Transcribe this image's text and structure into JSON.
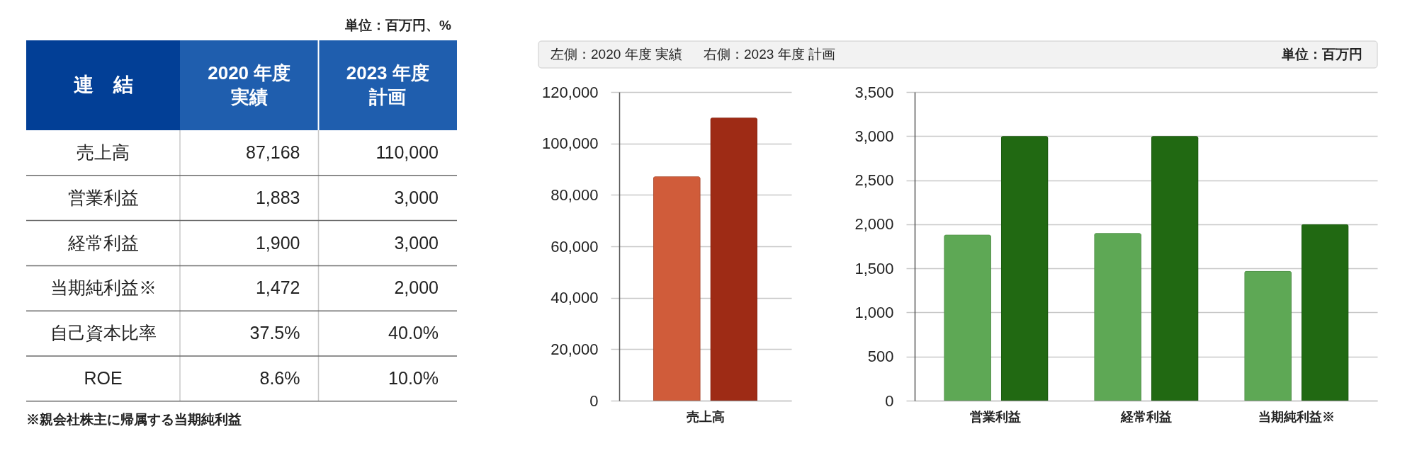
{
  "chart_data": [
    {
      "type": "other",
      "ylabel": "連　結",
      "categories": [
        "2020 年度実績",
        "2023 年度計画"
      ],
      "y_categories": [
        "売上高",
        "営業利益",
        "経常利益",
        "当期純利益※",
        "自己資本比率",
        "ROE"
      ],
      "cell_labels": [
        [
          "87,168",
          "110,000"
        ],
        [
          "1,883",
          "3,000"
        ],
        [
          "1,900",
          "3,000"
        ],
        [
          "1,472",
          "2,000"
        ],
        [
          "37.5%",
          "40.0%"
        ],
        [
          "8.6%",
          "10.0%"
        ]
      ],
      "annotations": [
        "単位：百万円、%",
        "※親会社株主に帰属する当期純利益"
      ]
    },
    {
      "type": "other",
      "annotations": [
        "左側：2020 年度 実績",
        "右側：2023 年度 計画",
        "単位：百万円"
      ]
    },
    {
      "type": "bar",
      "categories": [
        "売上高"
      ],
      "series": [
        {
          "color": "#d05c3a",
          "values": [
            87168
          ]
        },
        {
          "color": "#9e2b15",
          "values": [
            110000
          ]
        }
      ],
      "ylim": [
        0,
        120000
      ],
      "yticks": [
        {
          "value": 0,
          "label": "0"
        },
        {
          "value": 20000,
          "label": "20,000"
        },
        {
          "value": 40000,
          "label": "40,000"
        },
        {
          "value": 60000,
          "label": "60,000"
        },
        {
          "value": 80000,
          "label": "80,000"
        },
        {
          "value": 100000,
          "label": "100,000"
        },
        {
          "value": 120000,
          "label": "120,000"
        }
      ],
      "grid": "y"
    },
    {
      "type": "bar",
      "categories": [
        "営業利益",
        "経常利益",
        "当期純利益※"
      ],
      "series": [
        {
          "color": "#5ea855",
          "values": [
            1883,
            1900,
            1472
          ]
        },
        {
          "color": "#216912",
          "values": [
            3000,
            3000,
            2000
          ]
        }
      ],
      "ylim": [
        0,
        3500
      ],
      "yticks": [
        {
          "value": 0,
          "label": "0"
        },
        500,
        {
          "value": 1000,
          "label": "1,000"
        },
        {
          "value": 1500,
          "label": "1,500"
        },
        {
          "value": 2000,
          "label": "2,000"
        },
        {
          "value": 2500,
          "label": "2,500"
        },
        {
          "value": 3000,
          "label": "3,000"
        },
        {
          "value": 3500,
          "label": "3,500"
        }
      ],
      "grid": "y"
    }
  ]
}
